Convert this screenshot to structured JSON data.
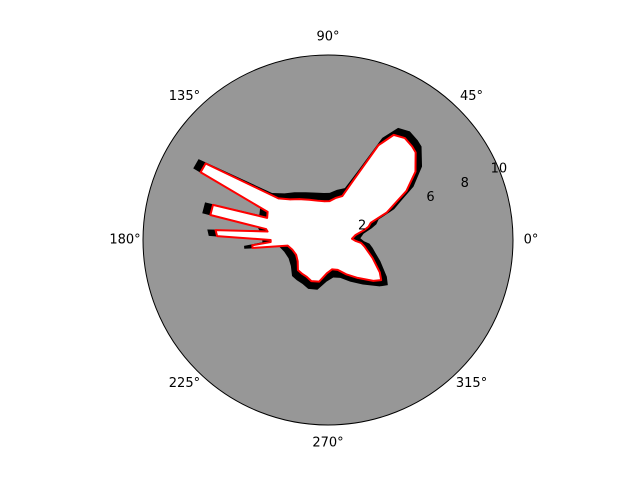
{
  "chart_data": {
    "type": "polar",
    "angular_tick_labels": [
      "0°",
      "45°",
      "90°",
      "135°",
      "180°",
      "225°",
      "270°",
      "315°"
    ],
    "angular_tick_values_deg": [
      0,
      45,
      90,
      135,
      180,
      225,
      270,
      315
    ],
    "radial_tick_labels": [
      "2",
      "6",
      "8",
      "10"
    ],
    "radial_tick_values": [
      2,
      6,
      8,
      10
    ],
    "radial_tick_label_angle_deg": 22.5,
    "rlim": [
      0,
      10
    ],
    "grid": false,
    "colors": {
      "background": "#979797",
      "free_space": "#ffffff",
      "obstacle": "#000000",
      "scan": "#ff0000"
    },
    "scan": {
      "description_none": "",
      "points": [
        [
          3,
          1.3
        ],
        [
          10,
          1.5
        ],
        [
          15,
          2.0
        ],
        [
          18,
          2.3
        ],
        [
          22,
          2.5
        ],
        [
          25,
          3.5
        ],
        [
          28,
          4.0
        ],
        [
          32,
          5.0
        ],
        [
          38,
          6.0
        ],
        [
          45,
          6.7
        ],
        [
          48,
          6.8
        ],
        [
          53,
          6.9
        ],
        [
          58,
          6.7
        ],
        [
          62,
          5.8
        ],
        [
          67,
          3.5
        ],
        [
          72,
          2.5
        ],
        [
          80,
          2.3
        ],
        [
          88,
          2.1
        ],
        [
          95,
          2.1
        ],
        [
          105,
          2.2
        ],
        [
          115,
          2.4
        ],
        [
          125,
          2.7
        ],
        [
          133,
          3.0
        ],
        [
          140,
          3.5
        ],
        [
          148,
          7.8
        ],
        [
          152,
          7.8
        ],
        [
          155,
          3.6
        ],
        [
          160,
          3.5
        ],
        [
          163,
          6.5
        ],
        [
          168,
          6.5
        ],
        [
          170,
          3.4
        ],
        [
          172,
          3.3
        ],
        [
          175,
          6.1
        ],
        [
          178,
          6.0
        ],
        [
          180,
          3.1
        ],
        [
          182,
          3.1
        ],
        [
          184,
          4.1
        ],
        [
          186,
          4.1
        ],
        [
          188,
          2.2
        ],
        [
          195,
          2.0
        ],
        [
          205,
          1.9
        ],
        [
          215,
          2.0
        ],
        [
          225,
          2.3
        ],
        [
          232,
          2.3
        ],
        [
          240,
          2.3
        ],
        [
          248,
          2.4
        ],
        [
          258,
          2.3
        ],
        [
          268,
          1.8
        ],
        [
          278,
          1.6
        ],
        [
          288,
          1.7
        ],
        [
          298,
          2.1
        ],
        [
          308,
          2.6
        ],
        [
          318,
          3.3
        ],
        [
          323,
          3.6
        ],
        [
          328,
          3.3
        ],
        [
          338,
          2.6
        ],
        [
          345,
          2.2
        ],
        [
          350,
          2.0
        ],
        [
          355,
          1.8
        ],
        [
          358,
          1.5
        ]
      ]
    }
  }
}
